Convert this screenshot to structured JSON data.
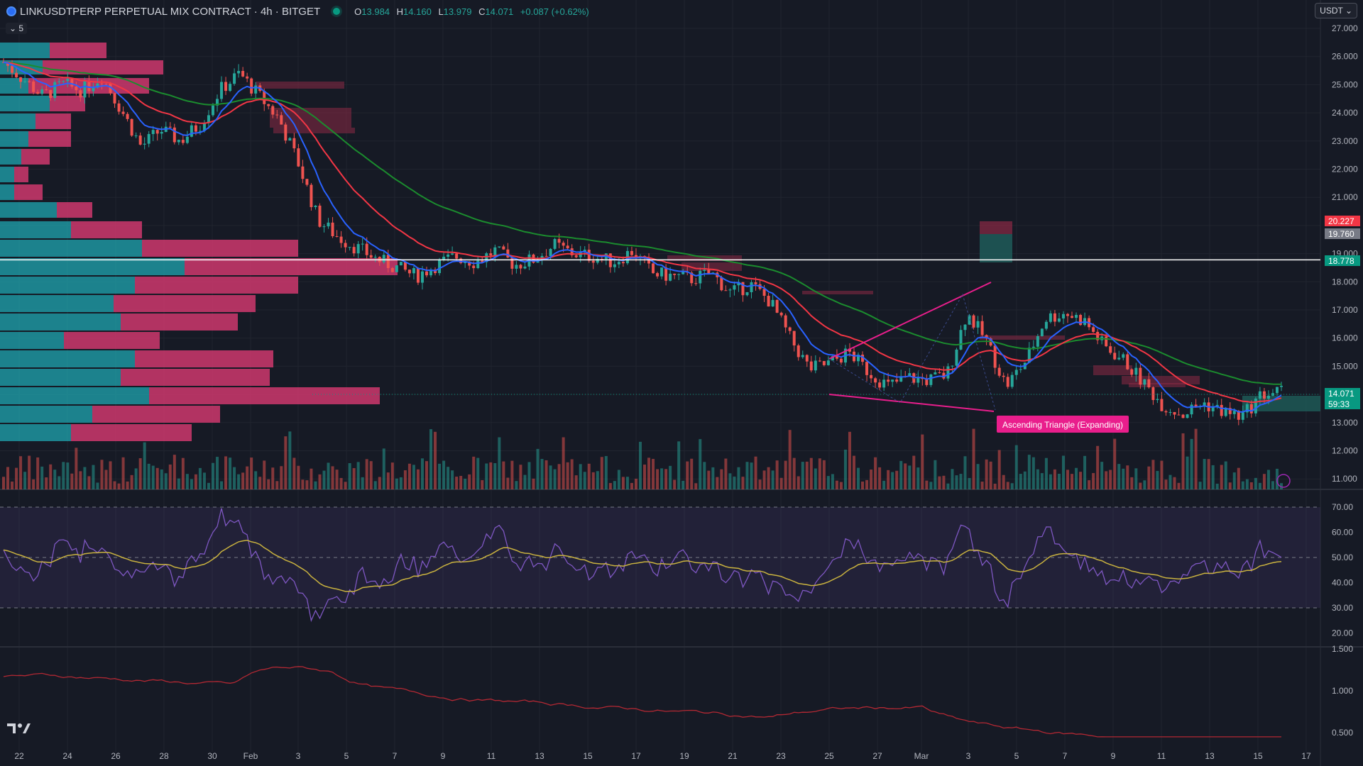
{
  "header": {
    "symbol": "LINKUSDTPERP PERPETUAL MIX CONTRACT · 4h · BITGET",
    "open_label": "O",
    "open": "13.984",
    "high_label": "H",
    "high": "14.160",
    "low_label": "L",
    "low": "13.979",
    "close_label": "C",
    "close": "14.071",
    "change": "+0.087 (+0.62%)"
  },
  "currency_selector": "USDT",
  "collapse_label": "5",
  "price_axis": {
    "ticks": [
      "27.000",
      "26.000",
      "25.000",
      "24.000",
      "23.000",
      "22.000",
      "21.000",
      "19.000",
      "18.000",
      "17.000",
      "16.000",
      "15.000",
      "13.000",
      "12.000",
      "11.000"
    ],
    "tags": [
      {
        "text": "20.227",
        "color": "#f23645"
      },
      {
        "text": "19.760",
        "color": "#787b86"
      },
      {
        "text": "18.778",
        "color": "#089981"
      },
      {
        "text": "14.071",
        "color": "#089981"
      },
      {
        "text": "59:33",
        "color": "#089981"
      }
    ]
  },
  "rsi_axis": {
    "ticks": [
      "70.00",
      "60.00",
      "50.00",
      "40.00",
      "30.00",
      "20.00"
    ]
  },
  "third_axis": {
    "ticks": [
      "1.500",
      "1.000",
      "0.500"
    ]
  },
  "time_axis": {
    "ticks": [
      "22",
      "24",
      "26",
      "28",
      "30",
      "Feb",
      "3",
      "5",
      "7",
      "9",
      "11",
      "13",
      "15",
      "17",
      "19",
      "21",
      "23",
      "25",
      "27",
      "Mar",
      "3",
      "5",
      "7",
      "9",
      "11",
      "13",
      "15",
      "17"
    ]
  },
  "annotations": {
    "pattern_label": "Ascending Triangle (Expanding)"
  },
  "colors": {
    "bg": "#161a25",
    "up": "#26a69a",
    "down": "#ef5350",
    "ema_fast": "#2962ff",
    "ema_mid": "#f23645",
    "ema_slow": "#1b8c2e",
    "rsi": "#7e57c2",
    "rsi_ma": "#c9b23f"
  },
  "chart_data": {
    "type": "candlestick",
    "title": "LINKUSDTPERP PERPETUAL MIX CONTRACT · 4h · BITGET",
    "ylim": [
      10.6,
      27.6
    ],
    "x_dates": [
      "22",
      "24",
      "26",
      "28",
      "30",
      "Feb",
      "3",
      "5",
      "7",
      "9",
      "11",
      "13",
      "15",
      "17",
      "19",
      "21",
      "23",
      "25",
      "27",
      "Mar",
      "3",
      "5",
      "7",
      "9",
      "11",
      "13",
      "15",
      "17"
    ],
    "close_path": [
      25.8,
      25.2,
      24.6,
      25.0,
      24.8,
      25.3,
      24.1,
      22.8,
      23.4,
      23.0,
      23.6,
      24.8,
      25.4,
      24.6,
      23.8,
      22.2,
      20.2,
      19.6,
      19.2,
      18.8,
      18.5,
      18.2,
      18.6,
      18.9,
      18.7,
      19.1,
      18.6,
      18.8,
      19.3,
      19.0,
      18.9,
      18.7,
      19.1,
      18.3,
      18.2,
      18.1,
      18.3,
      17.6,
      17.9,
      17.3,
      16.0,
      14.9,
      15.1,
      15.5,
      14.8,
      14.3,
      14.6,
      14.5,
      14.7,
      16.9,
      15.9,
      14.3,
      15.2,
      16.7,
      16.9,
      16.6,
      15.7,
      15.2,
      14.4,
      13.6,
      13.3,
      13.7,
      13.4,
      13.2,
      14.0,
      14.1
    ],
    "horizontal_line": 18.778,
    "series": [
      {
        "name": "RSI",
        "ylim": [
          15,
          75
        ],
        "levels": [
          70,
          50,
          30
        ]
      }
    ]
  }
}
